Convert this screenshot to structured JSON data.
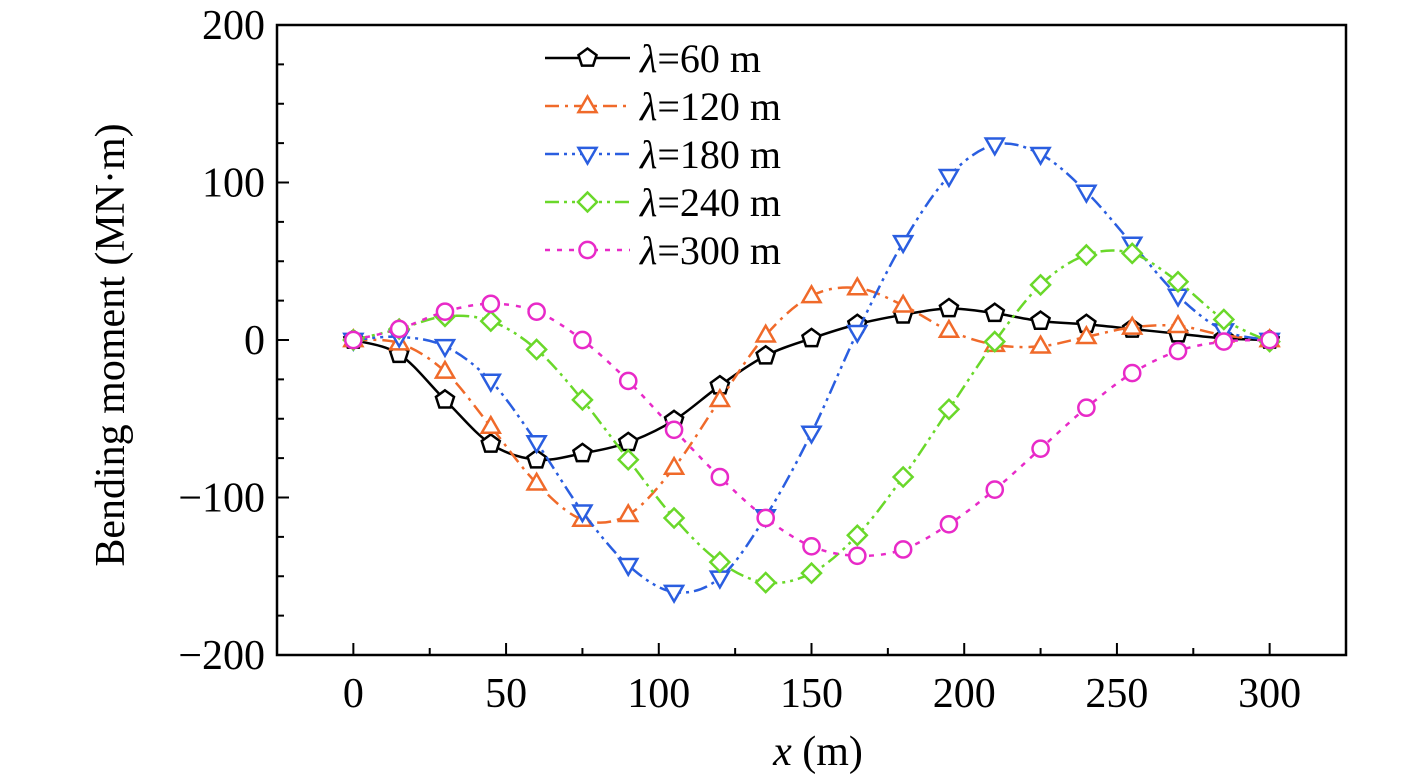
{
  "chart_data": {
    "type": "line",
    "xlabel": {
      "var": "x",
      "unit": " (m)"
    },
    "ylabel": "Bending moment (MN·m)",
    "xlim": [
      -25,
      325
    ],
    "ylim": [
      -200,
      200
    ],
    "xticks": [
      0,
      50,
      100,
      150,
      200,
      250,
      300
    ],
    "xtick_labels": [
      "0",
      "50",
      "100",
      "150",
      "200",
      "250",
      "300"
    ],
    "yticks": [
      200,
      100,
      0,
      -100,
      -200
    ],
    "ytick_labels": [
      "200",
      "100",
      "0",
      "−100",
      "−200"
    ],
    "grid": false,
    "legend_position": "top-center",
    "x": [
      0,
      15,
      30,
      45,
      60,
      75,
      90,
      105,
      120,
      135,
      150,
      165,
      180,
      195,
      210,
      225,
      240,
      255,
      270,
      285,
      300
    ],
    "series": [
      {
        "name": "λ=60 m",
        "lambda": "λ",
        "rest": "=60 m",
        "color": "#000000",
        "marker": "pentagon",
        "dash": "solid",
        "values": [
          0,
          -9,
          -38,
          -66,
          -76,
          -72,
          -65,
          -51,
          -29,
          -10,
          1,
          10,
          16,
          20,
          17,
          12,
          10,
          7,
          4,
          1,
          0
        ]
      },
      {
        "name": "λ=120 m",
        "lambda": "λ",
        "rest": "=120 m",
        "color": "#f06a2a",
        "marker": "triangle-up",
        "dash": "dash-dot",
        "values": [
          0,
          -2,
          -20,
          -55,
          -91,
          -114,
          -111,
          -81,
          -38,
          3,
          28,
          33,
          22,
          6,
          -3,
          -4,
          2,
          8,
          9,
          3,
          0
        ]
      },
      {
        "name": "λ=180 m",
        "lambda": "λ",
        "rest": "=180 m",
        "color": "#2a5ee0",
        "marker": "triangle-down",
        "dash": "dash-dot-dot",
        "values": [
          0,
          2,
          -4,
          -26,
          -65,
          -109,
          -143,
          -160,
          -151,
          -112,
          -59,
          5,
          62,
          104,
          124,
          118,
          94,
          61,
          28,
          6,
          0
        ]
      },
      {
        "name": "λ=240 m",
        "lambda": "λ",
        "rest": "=240 m",
        "color": "#6ad82a",
        "marker": "diamond",
        "dash": "dash-dot-dot",
        "values": [
          0,
          7,
          15,
          12,
          -6,
          -38,
          -76,
          -113,
          -141,
          -154,
          -148,
          -124,
          -87,
          -44,
          -1,
          35,
          54,
          55,
          37,
          13,
          -1
        ]
      },
      {
        "name": "λ=300 m",
        "lambda": "λ",
        "rest": "=300 m",
        "color": "#e82ac8",
        "marker": "circle",
        "dash": "dotted",
        "values": [
          0,
          7,
          18,
          23,
          18,
          0,
          -26,
          -57,
          -87,
          -113,
          -131,
          -137,
          -133,
          -117,
          -95,
          -69,
          -43,
          -21,
          -7,
          -1,
          0
        ]
      }
    ]
  }
}
